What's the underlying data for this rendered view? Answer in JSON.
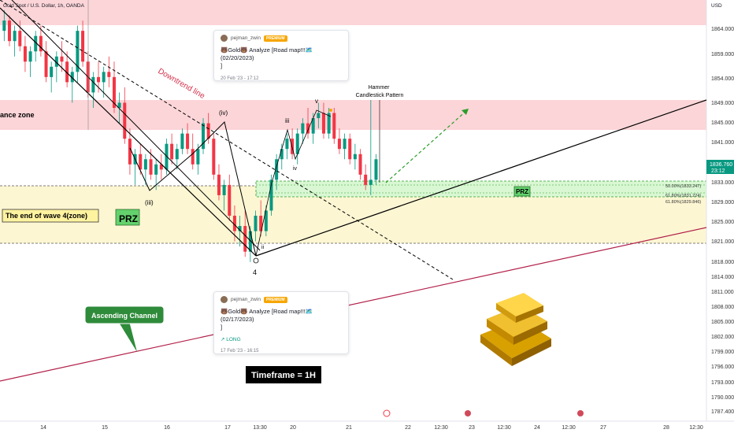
{
  "header": {
    "symbol": "Gold Spot / U.S. Dollar, 1h, OANDA",
    "currency": "USD"
  },
  "price_axis": {
    "labels": [
      "1864.000",
      "1859.000",
      "1854.000",
      "1849.000",
      "1845.000",
      "1841.000",
      "1833.000",
      "1829.000",
      "1825.000",
      "1821.000",
      "1818.000",
      "1814.000",
      "1811.000",
      "1808.000",
      "1805.000",
      "1802.000",
      "1799.000",
      "1796.000",
      "1793.000",
      "1790.000",
      "1787.400"
    ],
    "current_price": "1836.760",
    "countdown": "23:12"
  },
  "time_axis": {
    "labels": [
      "14",
      "15",
      "16",
      "17",
      "13:30",
      "20",
      "21",
      "22",
      "12:30",
      "23",
      "12:30",
      "24",
      "12:30",
      "27",
      "28",
      "12:30"
    ]
  },
  "annotations": {
    "resistance_zone": "ance zone",
    "downtrend_line": "Downtrend line",
    "end_wave4": "The end of wave 4(zone)",
    "prz_left": "PRZ",
    "prz_right": "PRZ",
    "hammer": "Hammer\nCandlestick Pattern",
    "ascending_channel": "Ascending Channel",
    "timeframe": "Timeframe = 1H",
    "wave_iv": "(iv)",
    "wave_iii_low": "(iii)",
    "wave_iii": "iii",
    "wave_v": "v",
    "wave_ii": "ii",
    "wave_iv_small": "iv",
    "wave_4": "4",
    "fib_50": "50.00%(1833.247)",
    "fib_618_a": "61.80%(1831.224)",
    "fib_618_b": "61.80%(1829.846)"
  },
  "idea_cards": [
    {
      "author": "pejman_zwin",
      "badge": "PREMIUM",
      "title": "🐻Gold🐻 Analyze [Road map!!!🗺️(02/20/2023)\n]",
      "direction": "",
      "time": "20 Feb '23 - 17:12"
    },
    {
      "author": "pejman_zwin",
      "badge": "PREMIUM",
      "title": "🐻Gold🐻 Analyze [Road map!!!🗺️(02/17/2023)\n]",
      "direction": "↗ LONG",
      "time": "17 Feb '23 - 16:15"
    }
  ],
  "colors": {
    "up": "#089981",
    "down": "#f23645",
    "resistance_fill": "#fcd5d8",
    "wave4_fill": "#fdf6d3",
    "prz_fill": "#d9f7d3",
    "prz_border": "#2a9d2a",
    "channel_line": "#b2204a",
    "label_green": "#2e8b3a"
  },
  "chart_data": {
    "type": "candlestick",
    "title": "Gold Spot / U.S. Dollar, 1h, OANDA",
    "ylabel": "USD",
    "ylim": [
      1786,
      1868
    ],
    "candles_ohlc": [
      [
        1862,
        1866,
        1860,
        1864
      ],
      [
        1864,
        1865,
        1859,
        1860
      ],
      [
        1860,
        1863,
        1857,
        1862
      ],
      [
        1862,
        1864,
        1858,
        1859
      ],
      [
        1859,
        1861,
        1854,
        1856
      ],
      [
        1856,
        1859,
        1853,
        1858
      ],
      [
        1858,
        1862,
        1856,
        1861
      ],
      [
        1861,
        1863,
        1857,
        1858
      ],
      [
        1858,
        1860,
        1852,
        1853
      ],
      [
        1853,
        1856,
        1850,
        1855
      ],
      [
        1855,
        1858,
        1852,
        1857
      ],
      [
        1857,
        1860,
        1854,
        1856
      ],
      [
        1856,
        1858,
        1851,
        1852
      ],
      [
        1852,
        1855,
        1848,
        1854
      ],
      [
        1854,
        1863,
        1852,
        1862
      ],
      [
        1862,
        1864,
        1855,
        1856
      ],
      [
        1856,
        1858,
        1849,
        1850
      ],
      [
        1850,
        1854,
        1847,
        1853
      ],
      [
        1853,
        1856,
        1850,
        1852
      ],
      [
        1852,
        1855,
        1849,
        1854
      ],
      [
        1854,
        1857,
        1851,
        1853
      ],
      [
        1853,
        1856,
        1846,
        1847
      ],
      [
        1847,
        1850,
        1844,
        1848
      ],
      [
        1848,
        1851,
        1840,
        1841
      ],
      [
        1841,
        1843,
        1834,
        1836
      ],
      [
        1836,
        1839,
        1832,
        1838
      ],
      [
        1838,
        1840,
        1834,
        1835
      ],
      [
        1835,
        1838,
        1832,
        1837
      ],
      [
        1837,
        1839,
        1833,
        1834
      ],
      [
        1834,
        1837,
        1831,
        1836
      ],
      [
        1836,
        1838,
        1833,
        1835
      ],
      [
        1835,
        1841,
        1834,
        1840
      ],
      [
        1840,
        1842,
        1836,
        1837
      ],
      [
        1837,
        1840,
        1835,
        1839
      ],
      [
        1839,
        1843,
        1838,
        1842
      ],
      [
        1842,
        1844,
        1838,
        1839
      ],
      [
        1839,
        1842,
        1835,
        1836
      ],
      [
        1836,
        1840,
        1834,
        1839
      ],
      [
        1839,
        1845,
        1838,
        1844
      ],
      [
        1844,
        1846,
        1840,
        1841
      ],
      [
        1841,
        1842,
        1833,
        1834
      ],
      [
        1834,
        1836,
        1829,
        1830
      ],
      [
        1830,
        1833,
        1827,
        1832
      ],
      [
        1832,
        1834,
        1825,
        1826
      ],
      [
        1826,
        1828,
        1821,
        1823
      ],
      [
        1823,
        1826,
        1820,
        1824
      ],
      [
        1824,
        1827,
        1818,
        1819
      ],
      [
        1819,
        1824,
        1817,
        1823
      ],
      [
        1823,
        1827,
        1821,
        1826
      ],
      [
        1826,
        1829,
        1822,
        1823
      ],
      [
        1823,
        1828,
        1822,
        1827
      ],
      [
        1827,
        1834,
        1826,
        1833
      ],
      [
        1833,
        1838,
        1831,
        1837
      ],
      [
        1837,
        1840,
        1835,
        1839
      ],
      [
        1839,
        1842,
        1837,
        1841
      ],
      [
        1841,
        1843,
        1837,
        1838
      ],
      [
        1838,
        1843,
        1836,
        1842
      ],
      [
        1842,
        1845,
        1840,
        1844
      ],
      [
        1844,
        1847,
        1841,
        1842
      ],
      [
        1842,
        1846,
        1840,
        1845
      ],
      [
        1845,
        1848,
        1843,
        1846
      ],
      [
        1846,
        1848,
        1841,
        1842
      ],
      [
        1842,
        1847,
        1841,
        1846
      ],
      [
        1846,
        1847,
        1840,
        1841
      ],
      [
        1841,
        1843,
        1838,
        1839
      ],
      [
        1839,
        1842,
        1837,
        1841
      ],
      [
        1841,
        1842,
        1836,
        1837
      ],
      [
        1837,
        1840,
        1835,
        1838
      ],
      [
        1838,
        1839,
        1833,
        1834
      ],
      [
        1834,
        1836,
        1831,
        1832
      ],
      [
        1832,
        1849,
        1830,
        1833
      ],
      [
        1833,
        1838,
        1832,
        1837
      ]
    ]
  }
}
